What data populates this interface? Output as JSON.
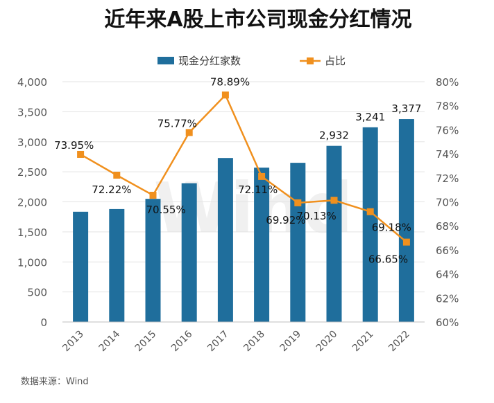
{
  "chart_data": {
    "type": "bar",
    "title": "近年来A股上市公司现金分红情况",
    "categories": [
      "2013",
      "2014",
      "2015",
      "2016",
      "2017",
      "2018",
      "2019",
      "2020",
      "2021",
      "2022"
    ],
    "series": [
      {
        "name": "现金分红家数",
        "type": "bar",
        "axis": "left",
        "color": "#1f6e9c",
        "values": [
          1835,
          1880,
          2050,
          2310,
          2730,
          2570,
          2650,
          2932,
          3241,
          3377
        ],
        "labels": [
          "",
          "",
          "",
          "",
          "",
          "",
          "",
          "2,932",
          "3,241",
          "3,377"
        ]
      },
      {
        "name": "占比",
        "type": "line",
        "axis": "right",
        "color": "#f0901e",
        "values": [
          73.95,
          72.22,
          70.55,
          75.77,
          78.89,
          72.11,
          69.92,
          70.13,
          69.18,
          66.65
        ],
        "labels": [
          "73.95%",
          "72.22%",
          "70.55%",
          "75.77%",
          "78.89%",
          "72.11%",
          "69.92%",
          "70.13%",
          "69.18%",
          "66.65%"
        ]
      }
    ],
    "y_left": {
      "min": 0,
      "max": 4000,
      "ticks": [
        0,
        500,
        1000,
        1500,
        2000,
        2500,
        3000,
        3500,
        4000
      ],
      "tick_labels": [
        "0",
        "500",
        "1,000",
        "1,500",
        "2,000",
        "2,500",
        "3,000",
        "3,500",
        "4,000"
      ]
    },
    "y_right": {
      "min": 60,
      "max": 80,
      "ticks": [
        60,
        62,
        64,
        66,
        68,
        70,
        72,
        74,
        76,
        78,
        80
      ],
      "tick_labels": [
        "60%",
        "62%",
        "64%",
        "66%",
        "68%",
        "70%",
        "72%",
        "74%",
        "76%",
        "78%",
        "80%"
      ]
    },
    "legend_position": "top-center",
    "grid": true
  },
  "watermark": "Wind",
  "source": "数据来源：Wind"
}
